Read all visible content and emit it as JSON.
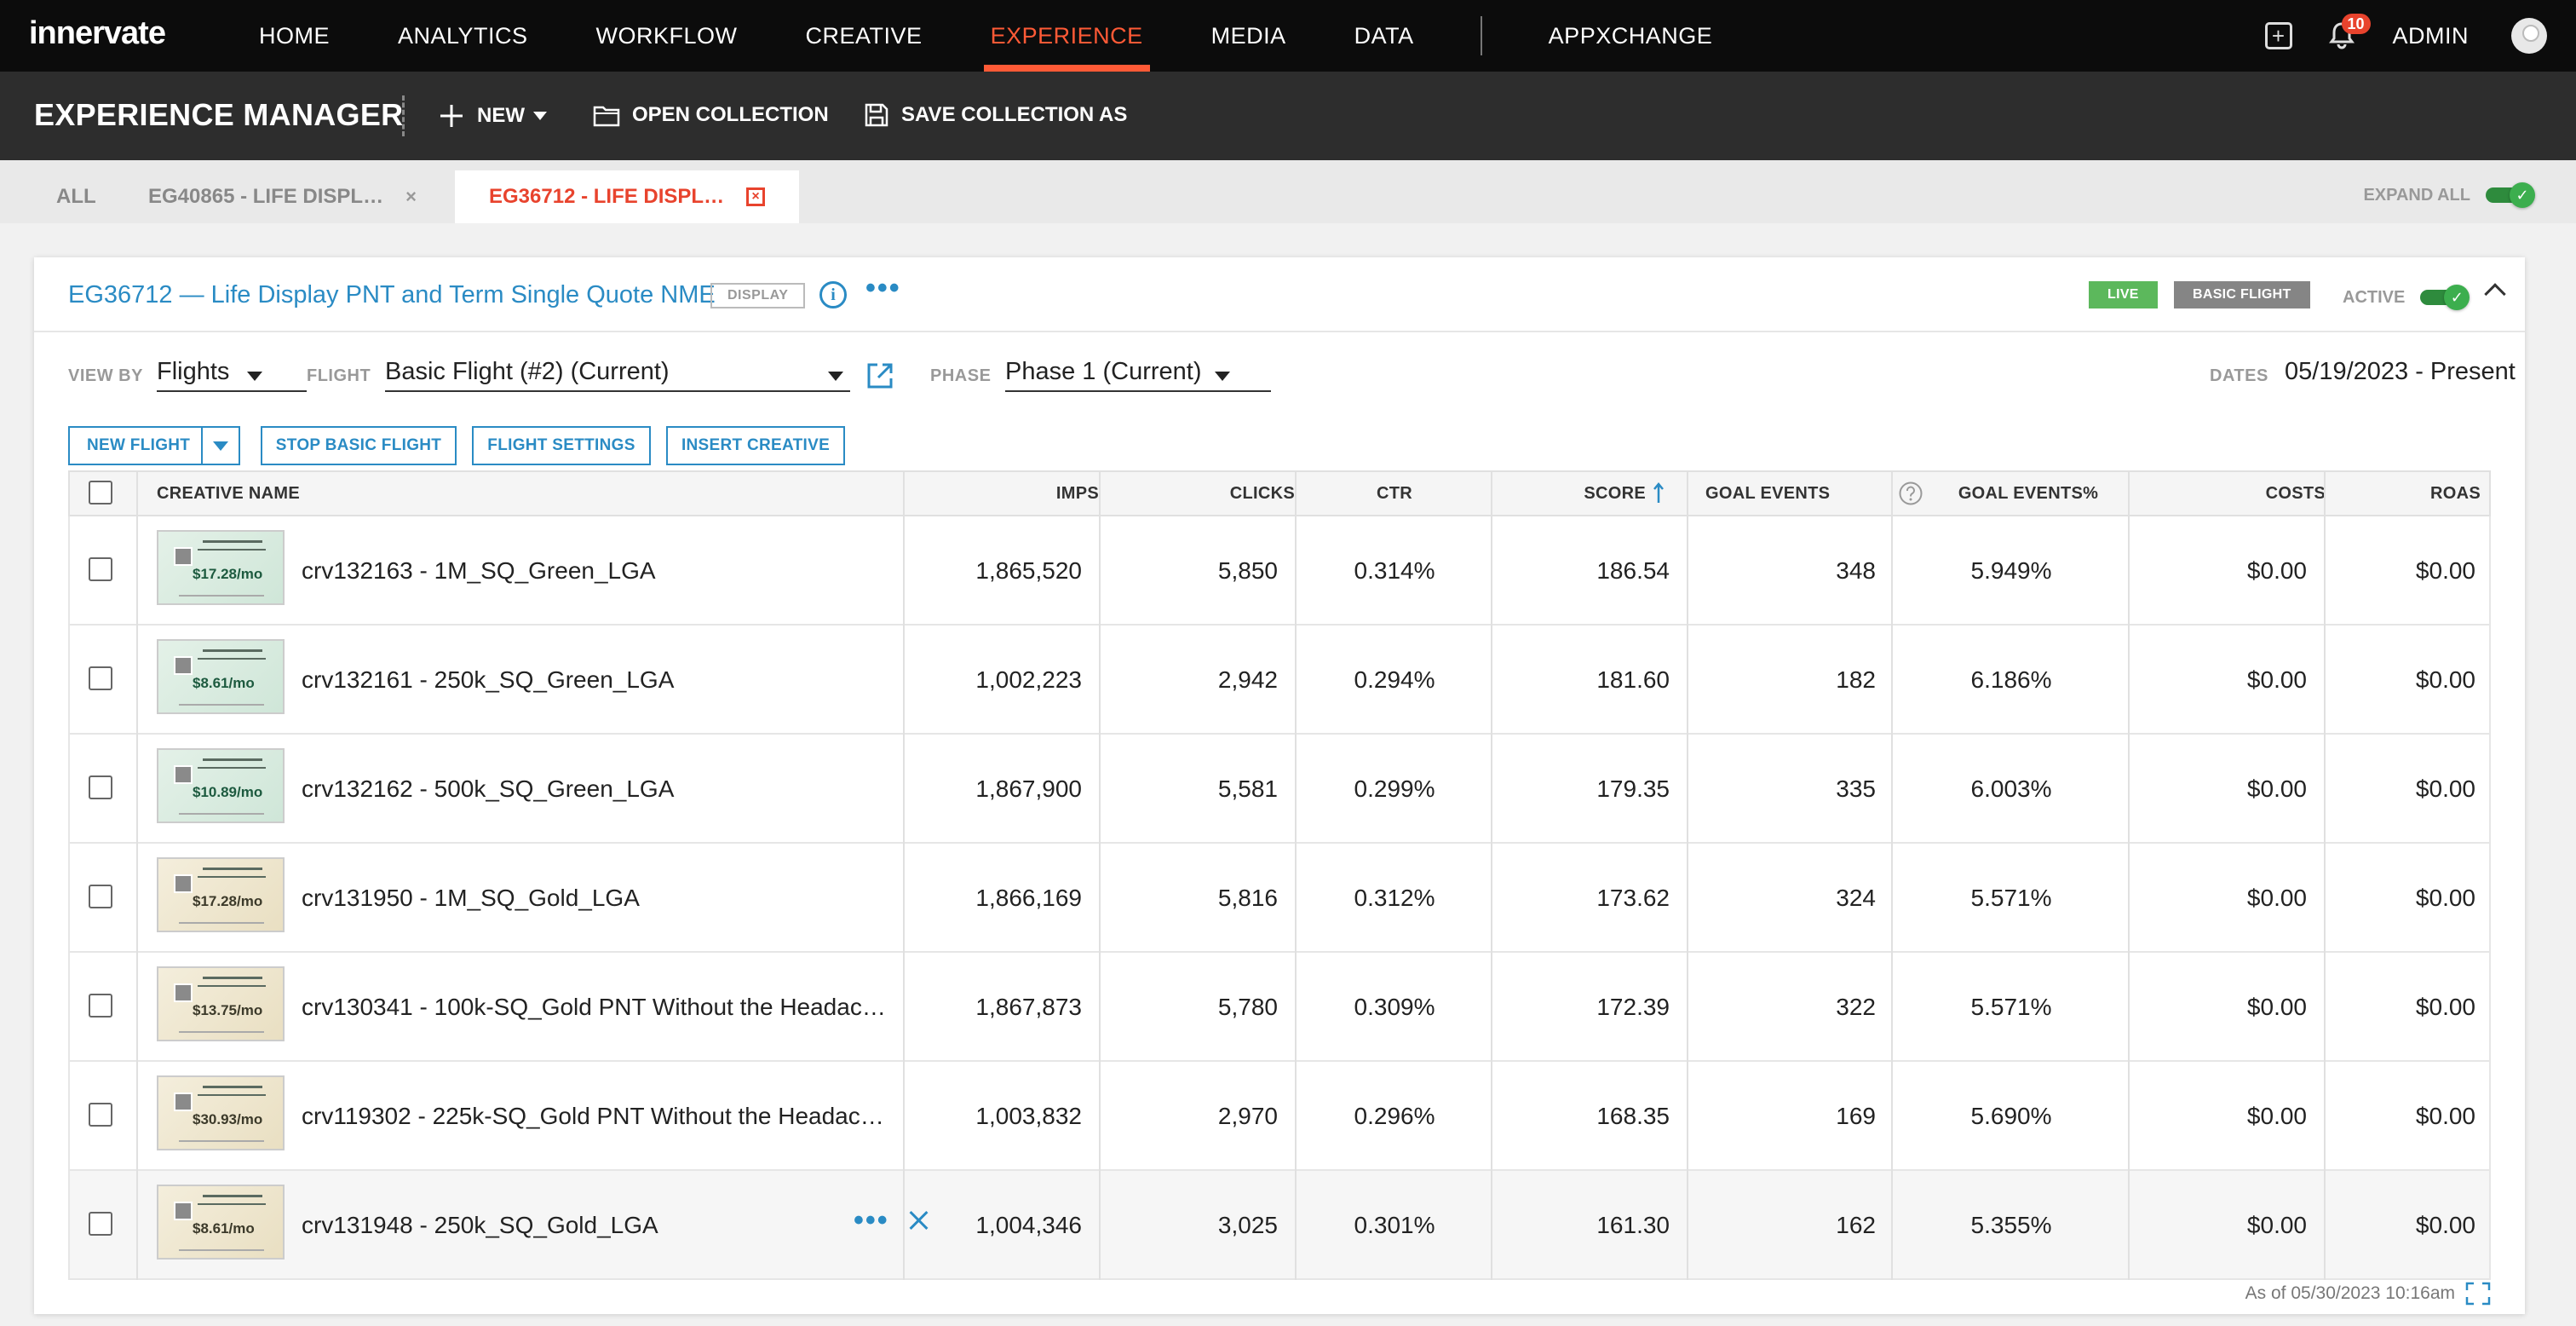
{
  "brand": "innervate",
  "nav": {
    "items": [
      "HOME",
      "ANALYTICS",
      "WORKFLOW",
      "CREATIVE",
      "EXPERIENCE",
      "MEDIA",
      "DATA"
    ],
    "extra": "APPXCHANGE",
    "active": "EXPERIENCE",
    "notifications": "10",
    "user": "ADMIN"
  },
  "toolbar": {
    "title": "EXPERIENCE MANAGER",
    "new_label": "NEW",
    "open_label": "OPEN COLLECTION",
    "save_label": "SAVE COLLECTION AS"
  },
  "tabs": [
    {
      "label": "ALL"
    },
    {
      "label": "EG40865 - LIFE DISPL…"
    },
    {
      "label": "EG36712 - LIFE DISPL…"
    }
  ],
  "expand_all": "EXPAND ALL",
  "experience": {
    "title": "EG36712 — Life Display PNT and Term Single Quote NME",
    "type_tag": "DISPLAY",
    "status_live": "LIVE",
    "status_flight": "BASIC FLIGHT",
    "active_label": "ACTIVE"
  },
  "filters": {
    "view_by_label": "VIEW BY",
    "view_by_value": "Flights",
    "flight_label": "FLIGHT",
    "flight_value": "Basic Flight (#2) (Current)",
    "phase_label": "PHASE",
    "phase_value": "Phase 1 (Current)",
    "dates_label": "DATES",
    "dates_value": "05/19/2023 - Present"
  },
  "actions": {
    "new_flight": "NEW FLIGHT",
    "stop_flight": "STOP BASIC FLIGHT",
    "flight_settings": "FLIGHT SETTINGS",
    "insert_creative": "INSERT CREATIVE"
  },
  "table": {
    "headers": [
      "CREATIVE NAME",
      "IMPS",
      "CLICKS",
      "CTR",
      "SCORE",
      "GOAL EVENTS",
      "GOAL EVENTS%",
      "COSTS",
      "ROAS"
    ],
    "rows": [
      {
        "name": "crv132163 - 1M_SQ_Green_LGA",
        "imps": "1,865,520",
        "clicks": "5,850",
        "ctr": "0.314%",
        "score": "186.54",
        "goal": "348",
        "goalpct": "5.949%",
        "costs": "$0.00",
        "roas": "$0.00",
        "price": "$17.28/mo",
        "theme": "green"
      },
      {
        "name": "crv132161 - 250k_SQ_Green_LGA",
        "imps": "1,002,223",
        "clicks": "2,942",
        "ctr": "0.294%",
        "score": "181.60",
        "goal": "182",
        "goalpct": "6.186%",
        "costs": "$0.00",
        "roas": "$0.00",
        "price": "$8.61/mo",
        "theme": "green"
      },
      {
        "name": "crv132162 - 500k_SQ_Green_LGA",
        "imps": "1,867,900",
        "clicks": "5,581",
        "ctr": "0.299%",
        "score": "179.35",
        "goal": "335",
        "goalpct": "6.003%",
        "costs": "$0.00",
        "roas": "$0.00",
        "price": "$10.89/mo",
        "theme": "green"
      },
      {
        "name": "crv131950 - 1M_SQ_Gold_LGA",
        "imps": "1,866,169",
        "clicks": "5,816",
        "ctr": "0.312%",
        "score": "173.62",
        "goal": "324",
        "goalpct": "5.571%",
        "costs": "$0.00",
        "roas": "$0.00",
        "price": "$17.28/mo",
        "theme": "gold"
      },
      {
        "name": "crv130341 - 100k-SQ_Gold PNT Without the Headac…",
        "imps": "1,867,873",
        "clicks": "5,780",
        "ctr": "0.309%",
        "score": "172.39",
        "goal": "322",
        "goalpct": "5.571%",
        "costs": "$0.00",
        "roas": "$0.00",
        "price": "$13.75/mo",
        "theme": "gold"
      },
      {
        "name": "crv119302 - 225k-SQ_Gold PNT Without the Headac…",
        "imps": "1,003,832",
        "clicks": "2,970",
        "ctr": "0.296%",
        "score": "168.35",
        "goal": "169",
        "goalpct": "5.690%",
        "costs": "$0.00",
        "roas": "$0.00",
        "price": "$30.93/mo",
        "theme": "gold"
      },
      {
        "name": "crv131948 - 250k_SQ_Gold_LGA",
        "imps": "1,004,346",
        "clicks": "3,025",
        "ctr": "0.301%",
        "score": "161.30",
        "goal": "162",
        "goalpct": "5.355%",
        "costs": "$0.00",
        "roas": "$0.00",
        "price": "$8.61/mo",
        "theme": "gold"
      }
    ]
  },
  "as_of": "As of 05/30/2023 10:16am",
  "colors": {
    "accent": "#ff5a36",
    "link": "#2a8bc4",
    "live": "#5cb85c",
    "toggle": "#3cae4e"
  }
}
